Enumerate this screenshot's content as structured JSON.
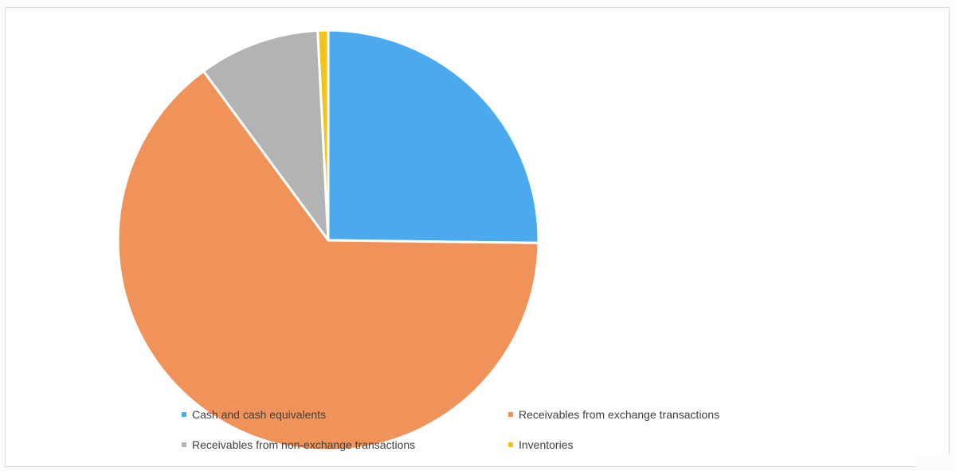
{
  "chart_data": {
    "type": "pie",
    "title": "",
    "start_angle_deg": 0,
    "direction": "clockwise",
    "categories": [
      "Cash and cash equivalents",
      "Receivables from exchange transactions",
      "Receivables from non-exchange transactions",
      "Inventories"
    ],
    "values": [
      25.2,
      64.7,
      9.3,
      0.8
    ],
    "colors": [
      "#4baaee",
      "#f0935a",
      "#b3b3b3",
      "#f2c318"
    ],
    "legend_position": "bottom"
  }
}
